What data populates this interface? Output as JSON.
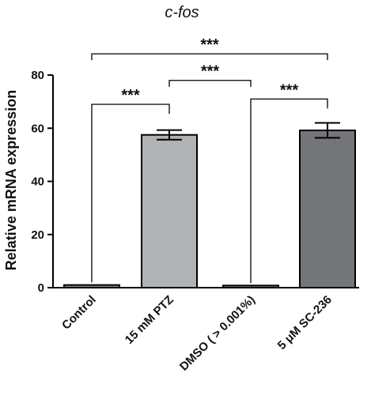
{
  "chart_data": {
    "type": "bar",
    "title": "c-fos",
    "xlabel": "",
    "ylabel": "Relative mRNA expression",
    "ylim": [
      0,
      80
    ],
    "yticks": [
      "0",
      "20",
      "40",
      "60",
      "80"
    ],
    "categories": [
      "Control",
      "15 mM PTZ",
      "DMSO ( > 0.001%)",
      "5 μM SC-236"
    ],
    "values": [
      1,
      57.5,
      0.8,
      59.2
    ],
    "errors": [
      0.2,
      1.8,
      0.2,
      2.8
    ],
    "bar_colors": [
      "#8a8a8a",
      "#b0b2b5",
      "#8a8a8a",
      "#737578"
    ],
    "significance": [
      {
        "from": 0,
        "to": 1,
        "label": "***",
        "y": 69
      },
      {
        "from": 1,
        "to": 2,
        "label": "***",
        "y": 78
      },
      {
        "from": 2,
        "to": 3,
        "label": "***",
        "y": 71
      },
      {
        "from": 0,
        "to": 3,
        "label": "***",
        "y": 88
      }
    ]
  }
}
